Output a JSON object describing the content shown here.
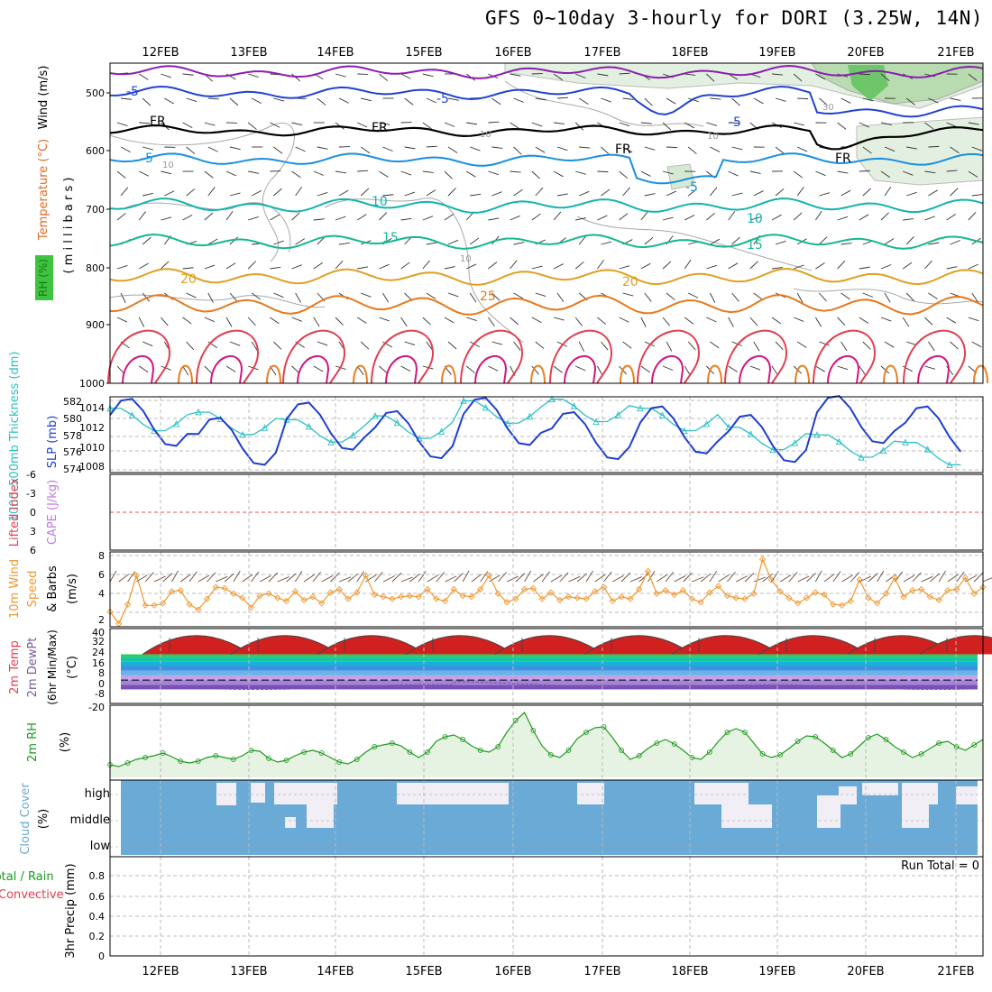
{
  "title": "GFS 0~10day 3-hourly for DORI (3.25W, 14N)",
  "dates": [
    "12FEB",
    "13FEB",
    "14FEB",
    "15FEB",
    "16FEB",
    "17FEB",
    "18FEB",
    "19FEB",
    "20FEB",
    "21FEB"
  ],
  "panels": {
    "upper": {
      "label_rh": "RH (%)",
      "label_temperature": "Temperature (°C)",
      "label_wind": "Wind (m/s)",
      "label_mb": "( m i l l i b a r s )",
      "pressure_ticks": [
        "500",
        "600",
        "700",
        "800",
        "900",
        "1000"
      ],
      "contour_labels": [
        "-5",
        "-5",
        "-5",
        "-5",
        "-5",
        "FR",
        "FR",
        "FR",
        "FR",
        "10",
        "10",
        "15",
        "15",
        "20",
        "20",
        "25",
        "10",
        "10",
        "10",
        "10",
        "30"
      ]
    },
    "slp": {
      "label_thickness": "1000–500mb Thickness (dm)",
      "label_slp": "SLP (mb)",
      "left_ticks": [
        "582",
        "580",
        "578",
        "576",
        "574"
      ],
      "right_ticks": [
        "1014",
        "1012",
        "1010",
        "1008"
      ]
    },
    "cape": {
      "label_lifted": "Lifted Index",
      "label_cape": "CAPE (J/kg)",
      "ticks": [
        "-6",
        "-3",
        "0",
        "3",
        "6"
      ]
    },
    "wind10m": {
      "label_1": "10m Wind",
      "label_2": "Speed",
      "label_3": "& Barbs",
      "label_unit": "(m/s)",
      "ticks": [
        "8",
        "6",
        "4",
        "2"
      ]
    },
    "temp2m": {
      "label_1": "2m Temp",
      "label_2": "2m DewPt",
      "label_3": "(6hr Min/Max)",
      "label_unit": "(°C)",
      "ticks": [
        "40",
        "32",
        "24",
        "16",
        "8",
        "0",
        "-8",
        "-20"
      ]
    },
    "rh2m": {
      "label": "2m RH",
      "label_unit": "(%)"
    },
    "cloud": {
      "label": "Cloud Cover",
      "label_unit": "(%)",
      "levels": [
        "high",
        "middle",
        "low"
      ]
    },
    "precip": {
      "label_1": "Total / Rain",
      "label_2": "Convective",
      "label_axis": "3hr Precip (mm)",
      "ticks": [
        "0.8",
        "0.6",
        "0.4",
        "0.2",
        "0"
      ],
      "run_total": "Run Total = 0"
    }
  },
  "colors": {
    "thickness": "#2bbfc4",
    "slp": "#1f3fd0",
    "wind": "#f09830",
    "rh": "#1e9a1e",
    "cloud": "#6aaad6",
    "cloud_gap": "#f1eef6",
    "dewpt": "#7a5a9a"
  },
  "chart_data": [
    {
      "type": "line",
      "title": "SLP / 1000-500mb Thickness",
      "x": [
        "12FEB",
        "13FEB",
        "14FEB",
        "15FEB",
        "16FEB",
        "17FEB",
        "18FEB",
        "19FEB",
        "20FEB",
        "21FEB"
      ],
      "series": [
        {
          "name": "1000-500mb Thickness (dm)",
          "values": [
            580,
            579.5,
            578.5,
            579,
            581,
            581.2,
            580,
            577.5,
            576.5,
            575.5
          ]
        },
        {
          "name": "SLP (mb)",
          "values": [
            1012.3,
            1010.3,
            1011.9,
            1011.0,
            1012.4,
            1010.9,
            1011.5,
            1010.6,
            1012.6,
            1011.5
          ]
        }
      ],
      "ylim_thickness": [
        573,
        583
      ],
      "ylim_slp": [
        1007,
        1015
      ]
    },
    {
      "type": "line",
      "title": "10m Wind Speed",
      "ylabel": "m/s",
      "ylim": [
        2,
        8
      ],
      "values": [
        2.9,
        1.8,
        3.6,
        6.3,
        3.5,
        3.5,
        3.7,
        4.8,
        4.9,
        3.6,
        3.1,
        4.1,
        5.2,
        5.1,
        4.6,
        4.2,
        3.3,
        4.4,
        4.6,
        4.2,
        3.9,
        4.8,
        4.0,
        4.3,
        3.7,
        4.7,
        5.0,
        4.1,
        4.7,
        6.3,
        4.5,
        4.3,
        4.1,
        4.3,
        4.4,
        4.3,
        5.0,
        4.1,
        3.9,
        5.0,
        4.4,
        4.3,
        5.0,
        6.3,
        4.6,
        3.8,
        4.1,
        5.0,
        5.1,
        4.1,
        4.7,
        4.0,
        4.3,
        4.2,
        4.1,
        4.8,
        5.2,
        3.9,
        4.3,
        4.1,
        5.0,
        6.7,
        4.6,
        4.9,
        4.5,
        4.9,
        4.1,
        3.8,
        4.7,
        5.3,
        4.4,
        4.2,
        4.1,
        4.6,
        7.8,
        5.9,
        4.8,
        4.2,
        3.7,
        4.2,
        4.7,
        4.5,
        3.6,
        3.5,
        3.9,
        5.9,
        4.2,
        3.7,
        4.6,
        6.1,
        4.3,
        4.9,
        5.0,
        4.3,
        4.0,
        4.9,
        5.0,
        6.1,
        4.6,
        5.2
      ]
    },
    {
      "type": "line",
      "title": "2m RH",
      "ylabel": "%",
      "values": [
        14,
        12,
        16,
        20,
        22,
        24,
        27,
        23,
        18,
        16,
        18,
        22,
        24,
        22,
        20,
        24,
        30,
        29,
        21,
        17,
        19,
        24,
        28,
        30,
        27,
        22,
        17,
        15,
        20,
        28,
        34,
        36,
        38,
        35,
        28,
        22,
        28,
        40,
        45,
        47,
        42,
        35,
        30,
        28,
        34,
        50,
        63,
        72,
        52,
        35,
        25,
        22,
        30,
        43,
        50,
        55,
        56,
        44,
        30,
        20,
        24,
        32,
        38,
        42,
        37,
        30,
        22,
        20,
        28,
        40,
        50,
        54,
        50,
        38,
        26,
        22,
        25,
        32,
        40,
        46,
        45,
        38,
        30,
        22,
        26,
        35,
        44,
        48,
        42,
        34,
        28,
        22,
        26,
        32,
        38,
        40,
        34,
        30,
        36,
        42
      ]
    },
    {
      "type": "area",
      "title": "2m Temp (6hr Min/Max)",
      "ylabel": "°C",
      "ylim": [
        -20,
        44
      ],
      "max_per_day": [
        38,
        38,
        38,
        38,
        38,
        38,
        38,
        38,
        38,
        38
      ],
      "min_per_day": [
        22,
        22,
        22,
        22,
        22,
        22,
        22,
        22,
        22,
        22
      ]
    }
  ]
}
